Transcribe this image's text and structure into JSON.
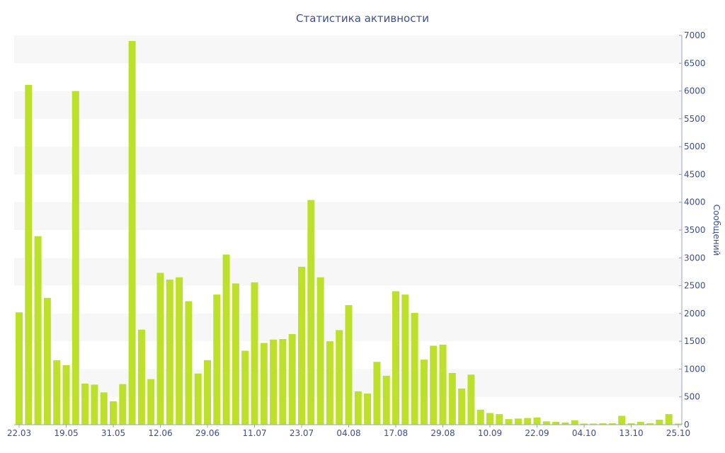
{
  "chart_data": {
    "type": "bar",
    "title": "Статистика активности",
    "xlabel": "",
    "ylabel": "Сообщений",
    "y_axis_side": "right",
    "ylim": [
      0,
      7000
    ],
    "yticks": [
      0,
      500,
      1000,
      1500,
      2000,
      2500,
      3000,
      3500,
      4000,
      4500,
      5000,
      5500,
      6000,
      6500,
      7000
    ],
    "x_tick_labels": [
      {
        "label": "22.03",
        "index": 0
      },
      {
        "label": "19.05",
        "index": 5
      },
      {
        "label": "31.05",
        "index": 10
      },
      {
        "label": "12.06",
        "index": 15
      },
      {
        "label": "29.06",
        "index": 20
      },
      {
        "label": "11.07",
        "index": 25
      },
      {
        "label": "23.07",
        "index": 30
      },
      {
        "label": "04.08",
        "index": 35
      },
      {
        "label": "17.08",
        "index": 40
      },
      {
        "label": "29.08",
        "index": 45
      },
      {
        "label": "10.09",
        "index": 50
      },
      {
        "label": "22.09",
        "index": 55
      },
      {
        "label": "04.10",
        "index": 60
      },
      {
        "label": "13.10",
        "index": 65
      },
      {
        "label": "25.10",
        "index": 70
      }
    ],
    "values": [
      2020,
      6110,
      3390,
      2280,
      1160,
      1070,
      6000,
      740,
      720,
      580,
      420,
      730,
      6900,
      1710,
      820,
      2730,
      2610,
      2650,
      2220,
      920,
      1160,
      2340,
      3060,
      2540,
      1330,
      2560,
      1470,
      1530,
      1540,
      1630,
      2840,
      4040,
      2650,
      1500,
      1700,
      2150,
      600,
      560,
      1130,
      880,
      2400,
      2340,
      2010,
      1170,
      1420,
      1440,
      930,
      650,
      900,
      270,
      210,
      190,
      100,
      110,
      120,
      130,
      60,
      50,
      40,
      80,
      20,
      20,
      25,
      25,
      160,
      25,
      50,
      25,
      90,
      190,
      20
    ],
    "bar_color": "#bde12a",
    "band_color": "#f7f7f7",
    "text_color": "#3d4f8f",
    "grid": false
  }
}
